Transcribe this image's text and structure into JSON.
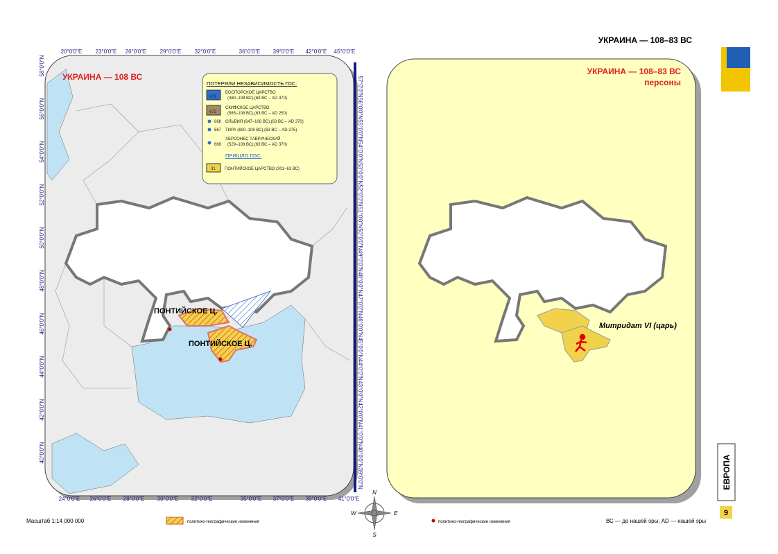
{
  "header": {
    "title": "УКРАИНА — 108–83 ВС"
  },
  "left_map": {
    "title": "УКРАИНА — 108 ВС",
    "top_ticks": [
      "20°0'0\"E",
      "23°0'0\"E",
      "26°0'0\"E",
      "29°0'0\"E",
      "32°0'0\"E",
      "36°0'0\"E",
      "39°0'0\"E",
      "42°0'0\"E",
      "45°0'0\"E"
    ],
    "bottom_ticks": [
      "24°0'0\"E",
      "26°0'0\"E",
      "28°0'0\"E",
      "30°0'0\"E",
      "32°0'0\"E",
      "35°0'0\"E",
      "37°0'0\"E",
      "39°0'0\"E",
      "41°0'0\"E"
    ],
    "left_ticks": [
      "58°0'0\"N",
      "56°0'0\"N",
      "54°0'0\"N",
      "52°0'0\"N",
      "50°0'0\"N",
      "48°0'0\"N",
      "46°0'0\"N",
      "44°0'0\"N",
      "42°0'0\"N",
      "40°0'0\"N"
    ],
    "right_ticks": [
      "57°0'0\"N",
      "56°0'0\"N",
      "55°0'0\"N",
      "54°0'0\"N",
      "53°0'0\"N",
      "52°0'0\"N",
      "51°0'0\"N",
      "50°0'0\"N",
      "49°0'0\"N",
      "48°0'0\"N",
      "47°0'0\"N",
      "46°0'0\"N",
      "45°0'0\"N",
      "44°0'0\"N",
      "43°0'0\"N",
      "42°0'0\"N",
      "41°0'0\"N",
      "40°0'0\"N",
      "39°0'0\"N"
    ],
    "labels": [
      "ПОНТИЙСКОЕ Ц.",
      "ПОНТИЙСКОЕ Ц."
    ]
  },
  "legend": {
    "lost_heading": "ПОТЕРЯЛИ НЕЗАВИСИМОСТЬ ГОС.",
    "lost": [
      {
        "code": "671",
        "lines": [
          "БОСПОРСКОЕ ЦАРСТВО",
          "(480–108 ВС),(63 ВС – AD 370)"
        ]
      },
      {
        "code": "672",
        "lines": [
          "СКИФСКОЕ ЦАРСТВО",
          "(585–108 ВС),(63 ВС – AD 250)"
        ]
      },
      {
        "code": "668",
        "lines": [
          "ОЛЬВИЯ (647–108 ВС),(63 ВС – AD 370)"
        ]
      },
      {
        "code": "667",
        "lines": [
          "ТИРА (600–108 ВС),(63 ВС – AD 275)"
        ]
      },
      {
        "code": "669",
        "lines": [
          "ХЕРСОНЕС ТАВРИЧЕСКИЙ",
          "(529–108 ВС),(63 ВС – AD 370)"
        ]
      }
    ],
    "came_heading": "ПРИШЛО ГОС.",
    "came": [
      {
        "code": "31",
        "lines": [
          "ПОНТИЙСКОЕ ЦАРСТВО (301–63 ВС)"
        ]
      }
    ]
  },
  "right_map": {
    "title": "УКРАИНА — 108–83 ВС",
    "subtitle": "персоны",
    "person": "Митридат VI (царь)"
  },
  "side": {
    "section": "ЕВРОПА",
    "page": "9"
  },
  "compass": [
    "N",
    "E",
    "S",
    "W"
  ],
  "footer": {
    "scale": "Масштаб 1:14 000 000",
    "hatch_note": "политико-географические изменения",
    "dot_note": "политико-географические изменения",
    "abbrev": "ВС — до нашей эры; AD — нашей эры"
  }
}
